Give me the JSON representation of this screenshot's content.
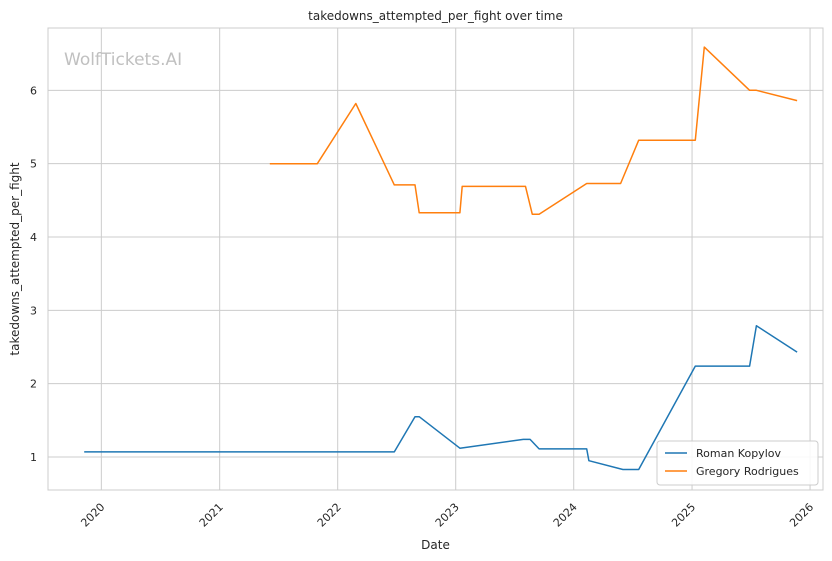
{
  "chart_data": {
    "type": "line",
    "title": "takedowns_attempted_per_fight over time",
    "xlabel": "Date",
    "ylabel": "takedowns_attempted_per_fight",
    "watermark": "WolfTickets.AI",
    "xlim": [
      "2019-07-20",
      "2026-02-10"
    ],
    "ylim": [
      0.55,
      6.85
    ],
    "x_ticks": [
      "2020",
      "2021",
      "2022",
      "2023",
      "2024",
      "2025",
      "2026"
    ],
    "y_ticks": [
      1,
      2,
      3,
      4,
      5,
      6
    ],
    "grid": true,
    "legend_position": "lower-right",
    "series": [
      {
        "name": "Roman Kopylov",
        "color": "#1f77b4",
        "points": [
          [
            "2019-11-09",
            1.07
          ],
          [
            "2022-06-25",
            1.07
          ],
          [
            "2022-08-28",
            1.55
          ],
          [
            "2022-09-10",
            1.55
          ],
          [
            "2023-01-14",
            1.12
          ],
          [
            "2023-07-29",
            1.24
          ],
          [
            "2023-08-19",
            1.24
          ],
          [
            "2023-09-16",
            1.11
          ],
          [
            "2024-02-10",
            1.11
          ],
          [
            "2024-02-17",
            0.95
          ],
          [
            "2024-06-01",
            0.83
          ],
          [
            "2024-07-20",
            0.83
          ],
          [
            "2025-01-11",
            2.24
          ],
          [
            "2025-06-28",
            2.24
          ],
          [
            "2025-07-19",
            2.79
          ],
          [
            "2025-11-22",
            2.43
          ]
        ]
      },
      {
        "name": "Gregory Rodrigues",
        "color": "#ff7f0e",
        "points": [
          [
            "2021-06-05",
            5.0
          ],
          [
            "2021-10-30",
            5.0
          ],
          [
            "2022-02-26",
            5.82
          ],
          [
            "2022-06-25",
            4.71
          ],
          [
            "2022-08-28",
            4.71
          ],
          [
            "2022-09-10",
            4.33
          ],
          [
            "2023-01-14",
            4.33
          ],
          [
            "2023-01-21",
            4.69
          ],
          [
            "2023-08-05",
            4.69
          ],
          [
            "2023-08-26",
            4.31
          ],
          [
            "2023-09-16",
            4.31
          ],
          [
            "2024-02-10",
            4.73
          ],
          [
            "2024-05-25",
            4.73
          ],
          [
            "2024-07-20",
            5.32
          ],
          [
            "2025-01-11",
            5.32
          ],
          [
            "2025-02-08",
            6.59
          ],
          [
            "2025-06-28",
            6.0
          ],
          [
            "2025-07-19",
            6.0
          ],
          [
            "2025-11-22",
            5.86
          ]
        ]
      }
    ]
  }
}
